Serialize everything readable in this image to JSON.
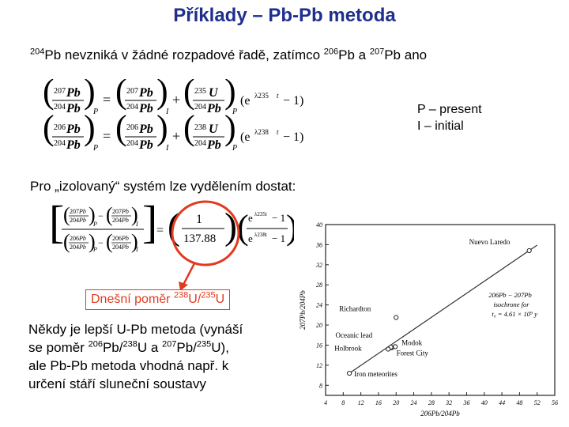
{
  "title": "Příklady – Pb-Pb metoda",
  "intro": {
    "sup1": "204",
    "text1": "Pb nevzniká v žádné rozpadové řadě, zatímco ",
    "sup2": "206",
    "text2": "Pb a ",
    "sup3": "207",
    "text3": "Pb ano"
  },
  "legend": {
    "present": "P – present",
    "initial": "I – initial"
  },
  "isolated_text": "Pro „izolovaný“ systém lze vydělením dostat:",
  "equations": {
    "eq1": {
      "num_mass": "207",
      "num_el": "Pb",
      "den_mass": "204",
      "den_el": "Pb",
      "parent_mass": "235",
      "parent_el": "U",
      "lambda": "λ235",
      "sub_P": "P",
      "sub_I": "I"
    },
    "eq2": {
      "num_mass": "206",
      "num_el": "Pb",
      "den_mass": "204",
      "den_el": "Pb",
      "parent_mass": "238",
      "parent_el": "U",
      "lambda": "λ238",
      "sub_P": "P",
      "sub_I": "I"
    },
    "ratio_eq": {
      "one": "1",
      "constant": "137.88",
      "minus1": "− 1",
      "lambda235": "λ235t",
      "lambda238": "λ238t"
    }
  },
  "ratio_label": {
    "text": "Dnešní poměr ",
    "sup1": "238",
    "mid": "U/",
    "sup2": "235",
    "end": "U"
  },
  "note": {
    "l1": "Někdy je lepší U-Pb metoda (vynáší",
    "l2a": "se poměr ",
    "s1": "206",
    "l2b": "Pb/",
    "s2": "238",
    "l2c": "U a ",
    "s3": "207",
    "l2d": "Pb/",
    "s4": "235",
    "l2e": "U),",
    "l3": "ale Pb-Pb metoda vhodná např. k",
    "l4": "určení stáří sluneční soustavy"
  },
  "colors": {
    "title": "#1f2f8c",
    "highlight": "#e23a1e"
  },
  "chart_data": {
    "type": "scatter",
    "title": "",
    "xlabel": "206Pb/204Pb",
    "ylabel": "207Pb/204Pb",
    "xlim": [
      4,
      56
    ],
    "ylim": [
      6,
      40
    ],
    "x_ticks": [
      "4",
      "8",
      "12",
      "16",
      "20",
      "24",
      "28",
      "32",
      "36",
      "40",
      "44",
      "48",
      "52",
      "56"
    ],
    "y_ticks": [
      "8",
      "12",
      "16",
      "20",
      "24",
      "28",
      "32",
      "36",
      "40"
    ],
    "points": [
      {
        "name": "Nuevo Laredo",
        "x": 50.2,
        "y": 34.8
      },
      {
        "name": "Richardton",
        "x": 20.0,
        "y": 21.5
      },
      {
        "name": "Modok",
        "x": 19.8,
        "y": 15.7
      },
      {
        "name": "Forest City",
        "x": 19.0,
        "y": 15.5
      },
      {
        "name": "Oceanic lead",
        "x": 18.8,
        "y": 15.6
      },
      {
        "name": "Holbrook",
        "x": 18.2,
        "y": 15.2
      },
      {
        "name": "Iron meteorites",
        "x": 9.4,
        "y": 10.4
      }
    ],
    "isochrone": {
      "label_l1": "206Pb − 207Pb",
      "label_l2": "isochrone  for",
      "label_l3": "t₀ = 4.61 × 10⁹ y",
      "line": [
        [
          9.4,
          10.4
        ],
        [
          52,
          35.9
        ]
      ]
    },
    "grid": false
  }
}
